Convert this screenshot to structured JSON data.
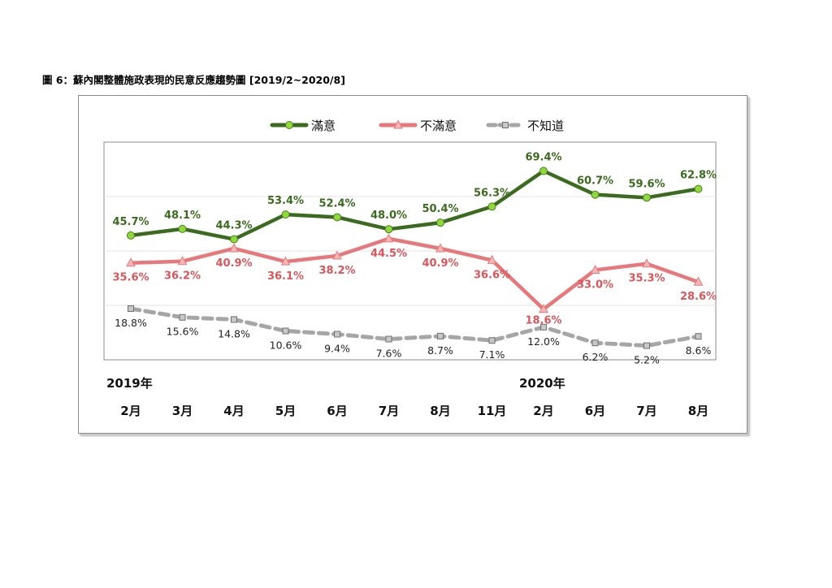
{
  "figure_title": "圖 6：蘇內閣整體施政表現的民意反應趨勢圖  [2019/2~2020/8]",
  "chart_data": {
    "type": "line",
    "categories": [
      "2月",
      "3月",
      "4月",
      "5月",
      "6月",
      "7月",
      "8月",
      "11月",
      "2月",
      "6月",
      "7月",
      "8月"
    ],
    "year_labels": [
      {
        "label": "2019年",
        "index": 0
      },
      {
        "label": "2020年",
        "index": 8
      }
    ],
    "ylim": [
      0,
      80
    ],
    "grid": true,
    "legend_position": "top",
    "series": [
      {
        "name": "滿意",
        "color": "#3a6b1e",
        "marker_color": "#8fd93a",
        "marker": "circle",
        "dashed": false,
        "values": [
          45.7,
          48.1,
          44.3,
          53.4,
          52.4,
          48.0,
          50.4,
          56.3,
          69.4,
          60.7,
          59.6,
          62.8
        ],
        "labels": [
          "45.7%",
          "48.1%",
          "44.3%",
          "53.4%",
          "52.4%",
          "48.0%",
          "50.4%",
          "56.3%",
          "69.4%",
          "60.7%",
          "59.6%",
          "62.8%"
        ]
      },
      {
        "name": "不滿意",
        "color": "#e8777a",
        "marker_color": "#f7b5b5",
        "marker": "triangle",
        "dashed": false,
        "values": [
          35.6,
          36.2,
          40.9,
          36.1,
          38.2,
          44.5,
          40.9,
          36.6,
          18.6,
          33.0,
          35.3,
          28.6
        ],
        "labels": [
          "35.6%",
          "36.2%",
          "40.9%",
          "36.1%",
          "38.2%",
          "44.5%",
          "40.9%",
          "36.6%",
          "18.6%",
          "33.0%",
          "35.3%",
          "28.6%"
        ]
      },
      {
        "name": "不知道",
        "color": "#a6a6a6",
        "marker_color": "#9a9a9a",
        "marker": "square",
        "dashed": true,
        "values": [
          18.8,
          15.6,
          14.8,
          10.6,
          9.4,
          7.6,
          8.7,
          7.1,
          12.0,
          6.2,
          5.2,
          8.6
        ],
        "labels": [
          "18.8%",
          "15.6%",
          "14.8%",
          "10.6%",
          "9.4%",
          "7.6%",
          "8.7%",
          "7.1%",
          "12.0%",
          "6.2%",
          "5.2%",
          "8.6%"
        ]
      }
    ]
  }
}
